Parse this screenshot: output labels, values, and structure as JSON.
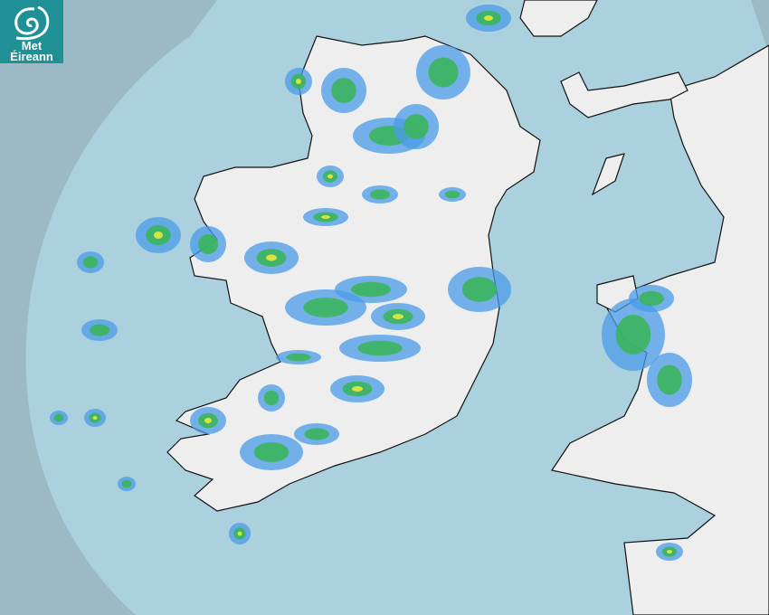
{
  "logo": {
    "line1": "Met",
    "line2": "Éireann",
    "brand_color": "#1f9096"
  },
  "map": {
    "type": "rainfall-radar",
    "colors": {
      "outside_radar": "#9cbac6",
      "radar_coverage": "#aad1dd",
      "land": "#eeeeee",
      "rain_light": "#4a9be8",
      "rain_moderate": "#3bb55c",
      "rain_heavy": "#e8e83a"
    }
  }
}
